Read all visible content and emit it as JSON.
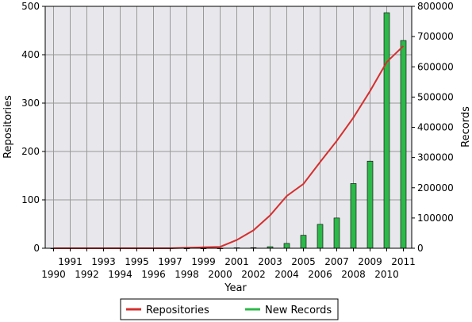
{
  "chart_data": {
    "type": "bar",
    "xlabel": "Year",
    "ylabel_left": "Repositories",
    "ylabel_right": "Records",
    "x": [
      1990,
      1991,
      1992,
      1993,
      1994,
      1995,
      1996,
      1997,
      1998,
      1999,
      2000,
      2001,
      2002,
      2003,
      2004,
      2005,
      2006,
      2007,
      2008,
      2009,
      2010,
      2011
    ],
    "ylim_left": [
      0,
      500
    ],
    "ylim_right": [
      0,
      800000
    ],
    "yticks_left": [
      "0",
      "100",
      "200",
      "300",
      "400",
      "500"
    ],
    "yticks_right": [
      "0",
      "100000",
      "200000",
      "300000",
      "400000",
      "500000",
      "600000",
      "700000",
      "800000"
    ],
    "grid": true,
    "legend_position": "bottom",
    "colors": {
      "repositories": "#d62f2f",
      "new_records": "#2db84a",
      "plot_bg": "#e8e8ec",
      "grid": "#999999"
    },
    "series": [
      {
        "name": "Repositories",
        "kind": "line",
        "axis": "left",
        "values": [
          0,
          0,
          0,
          0,
          0,
          0,
          0,
          0,
          1,
          2,
          3,
          17,
          37,
          68,
          108,
          133,
          178,
          222,
          270,
          325,
          385,
          418
        ]
      },
      {
        "name": "New Records",
        "kind": "bar",
        "axis": "right",
        "values": [
          0,
          0,
          0,
          0,
          0,
          0,
          0,
          0,
          0,
          0,
          0,
          1500,
          2000,
          5000,
          16000,
          43000,
          79000,
          100000,
          214000,
          288000,
          779000,
          687000
        ]
      }
    ]
  }
}
